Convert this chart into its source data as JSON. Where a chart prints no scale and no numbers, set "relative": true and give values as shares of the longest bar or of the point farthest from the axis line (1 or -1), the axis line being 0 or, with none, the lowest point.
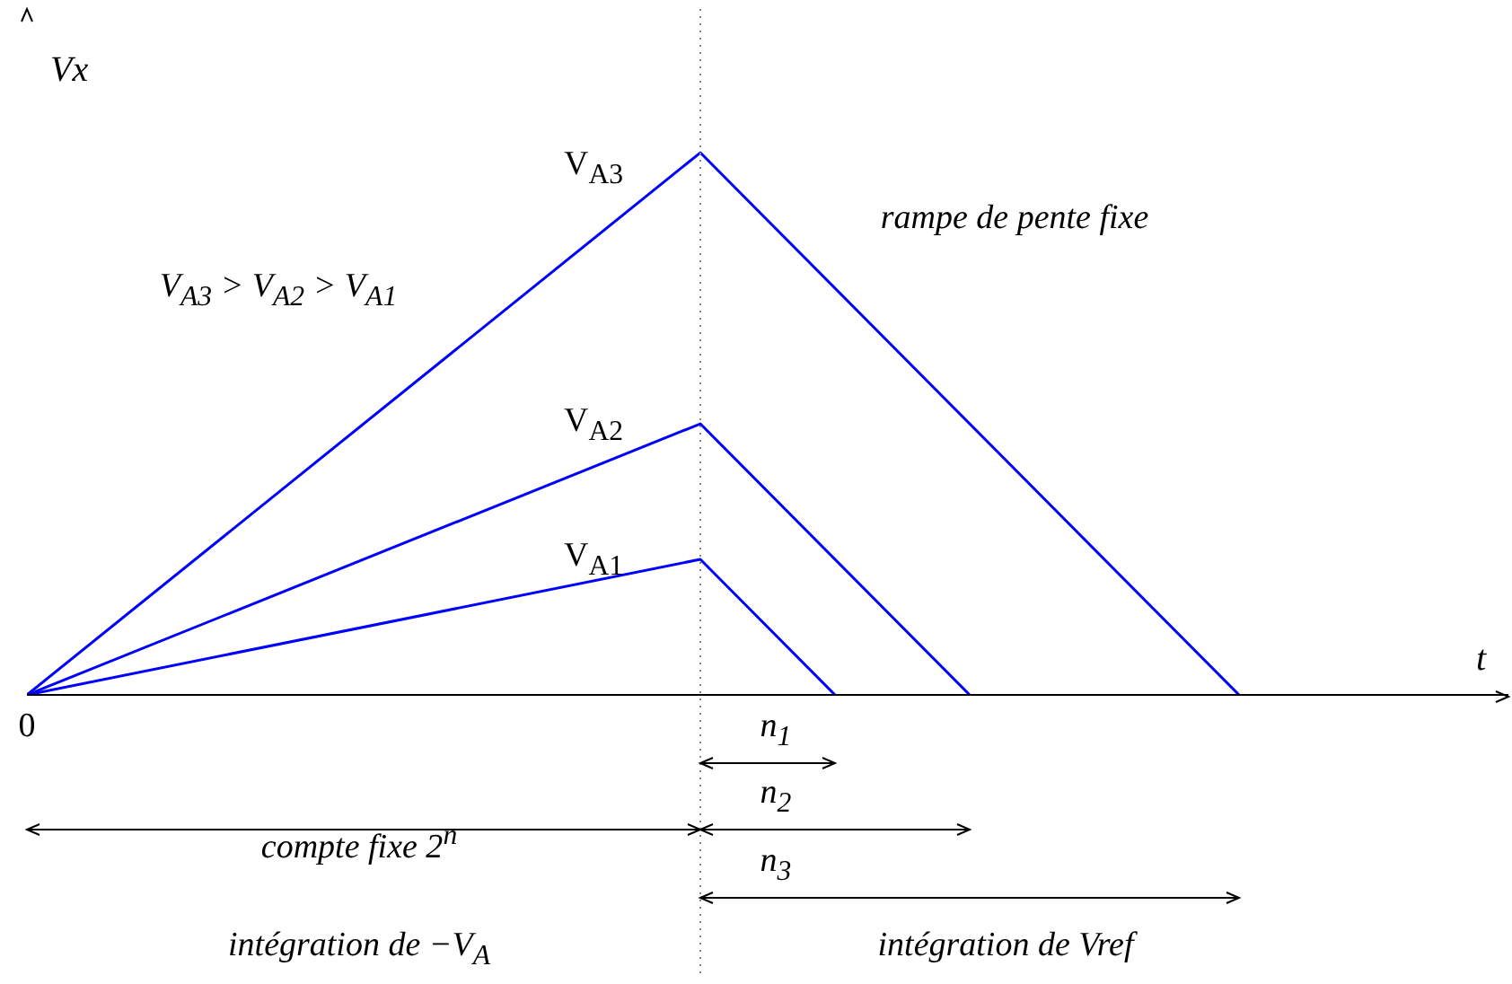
{
  "chart_data": {
    "type": "line",
    "relative": true,
    "xlabel": "t",
    "ylabel": "Vx",
    "categories": [
      null,
      null,
      null,
      null,
      null,
      null,
      null,
      null,
      null,
      null,
      null,
      null
    ],
    "series": [
      {
        "color": "#0000ff",
        "values": [
          0,
          null,
          null,
          null,
          null,
          1,
          null,
          null,
          null,
          0,
          null,
          null
        ]
      },
      {
        "color": "#0000ff",
        "values": [
          0,
          null,
          null,
          null,
          null,
          0.5,
          null,
          0,
          null,
          null,
          null,
          null
        ]
      },
      {
        "color": "#0000ff",
        "values": [
          0,
          null,
          null,
          null,
          null,
          0.25,
          0,
          null,
          null,
          null,
          null,
          null
        ]
      }
    ],
    "annotations": [
      "0",
      "V$_{A3}$",
      "V$_{A2}$",
      "V$_{A1}$",
      "V$_{A3}$ > V$_{A2}$ > V$_{A1}$",
      "rampe de pente fixe",
      "n$_{1}$",
      "compte fixe 2$^{n}$",
      "n$_{2}$",
      "n$_{3}$",
      "intégration de −V$_{A}$",
      "intégration de Vref"
    ],
    "grid": false,
    "legend": false,
    "marker": "none",
    "line_style": "solid"
  }
}
